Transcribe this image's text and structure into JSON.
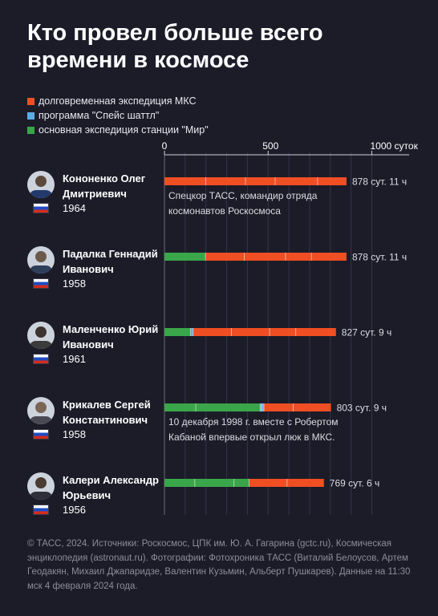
{
  "title": "Кто провел больше всего времени в космосе",
  "legend": [
    {
      "label": "долговременная экспедиция МКС",
      "color": "#f04e23"
    },
    {
      "label": "программа \"Спейс шаттл\"",
      "color": "#5aaee8"
    },
    {
      "label": "основная экспедиция станции \"Мир\"",
      "color": "#3aa64a"
    }
  ],
  "flag_icon": "russia-flag-icon",
  "people": [
    {
      "first_line": "Кононенко Олег",
      "second_line": "Дмитриевич",
      "year": "1964",
      "photo_icon": "portrait-icon"
    },
    {
      "first_line": "Падалка Геннадий",
      "second_line": "Иванович",
      "year": "1958",
      "photo_icon": "portrait-icon"
    },
    {
      "first_line": "Маленченко Юрий",
      "second_line": "Иванович",
      "year": "1961",
      "photo_icon": "portrait-icon"
    },
    {
      "first_line": "Крикалев Сергей",
      "second_line": "Константинович",
      "year": "1958",
      "photo_icon": "portrait-icon"
    },
    {
      "first_line": "Калери Александр",
      "second_line": "Юрьевич",
      "year": "1956",
      "photo_icon": "portrait-icon"
    }
  ],
  "chart_data": {
    "type": "bar",
    "orientation": "horizontal",
    "stacked": true,
    "x_ticks": [
      {
        "value": 0,
        "label": "0"
      },
      {
        "value": 500,
        "label": "500"
      },
      {
        "value": 1000,
        "label": "1000 суток"
      }
    ],
    "xlim": [
      0,
      1000
    ],
    "grid": true,
    "series_colors": {
      "iss": "#f04e23",
      "shuttle": "#5aaee8",
      "mir": "#3aa64a"
    },
    "bars": [
      {
        "total_label": "878 сут. 11 ч",
        "segments": [
          {
            "type": "iss",
            "value": 199
          },
          {
            "type": "iss",
            "value": 192
          },
          {
            "type": "iss",
            "value": 143
          },
          {
            "type": "iss",
            "value": 204
          },
          {
            "type": "iss",
            "value": 140
          }
        ],
        "note": [
          "Спецкор ТАСС, командир отряда",
          "космонавтов Роскосмоса"
        ]
      },
      {
        "total_label": "878 сут. 11 ч",
        "segments": [
          {
            "type": "mir",
            "value": 198
          },
          {
            "type": "iss",
            "value": 187
          },
          {
            "type": "iss",
            "value": 199
          },
          {
            "type": "iss",
            "value": 125
          },
          {
            "type": "iss",
            "value": 169
          }
        ],
        "note": []
      },
      {
        "total_label": "827 сут. 9 ч",
        "segments": [
          {
            "type": "mir",
            "value": 126
          },
          {
            "type": "shuttle",
            "value": 12
          },
          {
            "type": "iss",
            "value": 185
          },
          {
            "type": "iss",
            "value": 184
          },
          {
            "type": "iss",
            "value": 126
          },
          {
            "type": "iss",
            "value": 194
          }
        ],
        "note": []
      },
      {
        "total_label": "803 сут. 9 ч",
        "segments": [
          {
            "type": "mir",
            "value": 151
          },
          {
            "type": "mir",
            "value": 311
          },
          {
            "type": "shuttle",
            "value": 8
          },
          {
            "type": "shuttle",
            "value": 10
          },
          {
            "type": "iss",
            "value": 141
          },
          {
            "type": "iss",
            "value": 182
          }
        ],
        "note": [
          "10 декабря 1998 г. вместе с Робертом",
          "Кабаной впервые открыл люк в МКС."
        ]
      },
      {
        "total_label": "769 сут. 6 ч",
        "segments": [
          {
            "type": "mir",
            "value": 146
          },
          {
            "type": "mir",
            "value": 189
          },
          {
            "type": "mir",
            "value": 73
          },
          {
            "type": "iss",
            "value": 183
          },
          {
            "type": "iss",
            "value": 178
          }
        ],
        "note": []
      }
    ]
  },
  "footer": "© ТАСС, 2024. Источники: Роскосмос, ЦПК им. Ю. А. Гагарина (gctc.ru), Космическая энциклопедия (astronaut.ru). Фотографии: Фотохроника ТАСС (Виталий Белоусов, Артем Геодакян, Михаил Джапаридзе, Валентин Кузьмин, Альберт Пушкарев). Данные на 11:30 мск 4 февраля 2024 года."
}
